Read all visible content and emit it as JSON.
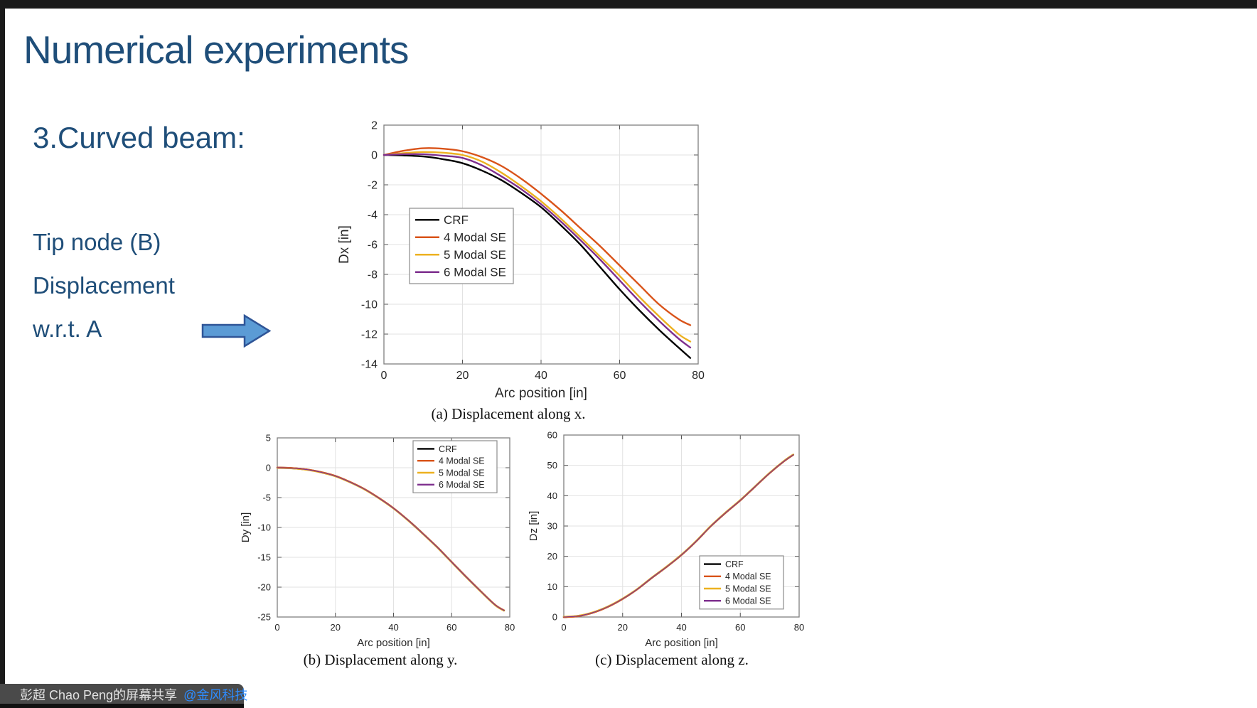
{
  "slide": {
    "title": "Numerical experiments",
    "section": "3.Curved beam:",
    "notes": [
      "Tip node (B)",
      "Displacement",
      "w.r.t. A"
    ]
  },
  "colors": {
    "title_blue": "#1F4E79",
    "arrow_fill": "#5B9BD5",
    "arrow_stroke": "#2F5597",
    "series_crf": "#000000",
    "series_4modal": "#D95319",
    "series_5modal": "#EDB120",
    "series_6modal": "#7E2F8E",
    "share_bar_bg": "#4A4A4A",
    "watermark_blue": "#2D8CFF"
  },
  "share_bar": {
    "presenter_text": "彭超 Chao Peng的屏幕共享",
    "watermark": "@金风科技",
    "icons": [
      "microphone-muted-icon",
      "screen-share-icon"
    ]
  },
  "chart_data": [
    {
      "type": "line",
      "caption": "(a) Displacement along x.",
      "xlabel": "Arc position [in]",
      "ylabel": "Dx [in]",
      "xlim": [
        0,
        80
      ],
      "ylim": [
        -14,
        2
      ],
      "xticks": [
        0,
        20,
        40,
        60,
        80
      ],
      "yticks": [
        2,
        0,
        -2,
        -4,
        -6,
        -8,
        -10,
        -12,
        -14
      ],
      "grid": true,
      "legend_position": "middle-left",
      "x": [
        0,
        5,
        10,
        15,
        20,
        25,
        30,
        35,
        40,
        45,
        50,
        55,
        60,
        65,
        70,
        75,
        78
      ],
      "series": [
        {
          "name": "CRF",
          "color": "#000000",
          "values": [
            0,
            -0.03,
            -0.1,
            -0.28,
            -0.55,
            -1.05,
            -1.7,
            -2.55,
            -3.5,
            -4.7,
            -6.0,
            -7.5,
            -9.0,
            -10.4,
            -11.7,
            -12.9,
            -13.6
          ]
        },
        {
          "name": "4 Modal SE",
          "color": "#D95319",
          "values": [
            0,
            0.28,
            0.45,
            0.42,
            0.25,
            -0.15,
            -0.75,
            -1.6,
            -2.6,
            -3.7,
            -4.9,
            -6.1,
            -7.4,
            -8.7,
            -10.0,
            -11.0,
            -11.4
          ]
        },
        {
          "name": "5 Modal SE",
          "color": "#EDB120",
          "values": [
            0,
            0.12,
            0.2,
            0.15,
            0.0,
            -0.45,
            -1.2,
            -2.1,
            -3.1,
            -4.25,
            -5.5,
            -6.8,
            -8.1,
            -9.5,
            -10.8,
            -12.0,
            -12.5
          ]
        },
        {
          "name": "6 Modal SE",
          "color": "#7E2F8E",
          "values": [
            0,
            0.05,
            0.05,
            -0.05,
            -0.2,
            -0.7,
            -1.45,
            -2.3,
            -3.3,
            -4.45,
            -5.7,
            -7.0,
            -8.4,
            -9.8,
            -11.1,
            -12.3,
            -12.9
          ]
        }
      ]
    },
    {
      "type": "line",
      "caption": "(b) Displacement along y.",
      "xlabel": "Arc position [in]",
      "ylabel": "Dy [in]",
      "xlim": [
        0,
        80
      ],
      "ylim": [
        -25,
        5
      ],
      "xticks": [
        0,
        20,
        40,
        60,
        80
      ],
      "yticks": [
        5,
        0,
        -5,
        -10,
        -15,
        -20,
        -25
      ],
      "grid": true,
      "legend_position": "top-right",
      "x": [
        0,
        5,
        10,
        15,
        20,
        25,
        30,
        35,
        40,
        45,
        50,
        55,
        60,
        65,
        70,
        75,
        78
      ],
      "series": [
        {
          "name": "CRF",
          "color": "#000000",
          "values": [
            0,
            -0.08,
            -0.3,
            -0.75,
            -1.4,
            -2.4,
            -3.6,
            -5.1,
            -6.8,
            -8.8,
            -11.0,
            -13.3,
            -15.8,
            -18.3,
            -20.7,
            -23.0,
            -23.9
          ]
        },
        {
          "name": "4 Modal SE",
          "color": "#D95319",
          "values": [
            0,
            -0.08,
            -0.3,
            -0.75,
            -1.4,
            -2.4,
            -3.6,
            -5.1,
            -6.8,
            -8.8,
            -11.0,
            -13.3,
            -15.8,
            -18.3,
            -20.7,
            -23.0,
            -23.9
          ]
        },
        {
          "name": "5 Modal SE",
          "color": "#EDB120",
          "values": [
            0,
            -0.08,
            -0.3,
            -0.75,
            -1.4,
            -2.4,
            -3.6,
            -5.1,
            -6.8,
            -8.8,
            -11.0,
            -13.3,
            -15.8,
            -18.3,
            -20.7,
            -23.0,
            -23.9
          ]
        },
        {
          "name": "6 Modal SE",
          "color": "#7E2F8E",
          "values": [
            0,
            -0.08,
            -0.3,
            -0.75,
            -1.4,
            -2.4,
            -3.6,
            -5.1,
            -6.8,
            -8.8,
            -11.0,
            -13.3,
            -15.8,
            -18.3,
            -20.7,
            -23.0,
            -23.9
          ]
        }
      ]
    },
    {
      "type": "line",
      "caption": "(c) Displacement along z.",
      "xlabel": "Arc position [in]",
      "ylabel": "Dz [in]",
      "xlim": [
        0,
        80
      ],
      "ylim": [
        0,
        60
      ],
      "xticks": [
        0,
        20,
        40,
        60,
        80
      ],
      "yticks": [
        0,
        10,
        20,
        30,
        40,
        50,
        60
      ],
      "grid": true,
      "legend_position": "bottom-right",
      "x": [
        0,
        5,
        10,
        15,
        20,
        25,
        30,
        35,
        40,
        45,
        50,
        55,
        60,
        65,
        70,
        75,
        78
      ],
      "series": [
        {
          "name": "CRF",
          "color": "#000000",
          "values": [
            0,
            0.35,
            1.5,
            3.4,
            6.0,
            9.2,
            13.0,
            16.6,
            20.5,
            25.0,
            30.0,
            34.4,
            38.5,
            43.0,
            47.5,
            51.5,
            53.5
          ]
        },
        {
          "name": "4 Modal SE",
          "color": "#D95319",
          "values": [
            0,
            0.35,
            1.5,
            3.4,
            6.0,
            9.2,
            13.0,
            16.6,
            20.5,
            25.0,
            30.0,
            34.4,
            38.5,
            43.0,
            47.5,
            51.5,
            53.5
          ]
        },
        {
          "name": "5 Modal SE",
          "color": "#EDB120",
          "values": [
            0,
            0.35,
            1.5,
            3.4,
            6.0,
            9.2,
            13.0,
            16.6,
            20.5,
            25.0,
            30.0,
            34.4,
            38.5,
            43.0,
            47.5,
            51.5,
            53.5
          ]
        },
        {
          "name": "6 Modal SE",
          "color": "#7E2F8E",
          "values": [
            0,
            0.35,
            1.5,
            3.4,
            6.0,
            9.2,
            13.0,
            16.6,
            20.5,
            25.0,
            30.0,
            34.4,
            38.5,
            43.0,
            47.5,
            51.5,
            53.5
          ]
        }
      ]
    }
  ]
}
